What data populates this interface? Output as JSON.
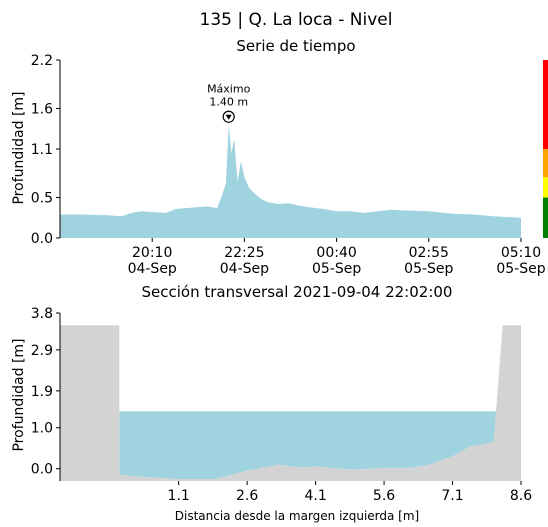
{
  "page": {
    "title": "135 | Q. La loca - Nivel"
  },
  "chart_data": [
    {
      "type": "area",
      "title": "Serie de tiempo",
      "xlabel": "",
      "ylabel": "Profundidad [m]",
      "ylim": [
        0,
        2.2
      ],
      "yticks": [
        "0.0",
        "0.5",
        "1.1",
        "1.6",
        "2.2"
      ],
      "ytick_values": [
        0,
        0.5,
        1.1,
        1.6,
        2.2
      ],
      "xlim": [
        "2021-09-04T17:55",
        "2021-09-05T05:10"
      ],
      "xticks": [
        {
          "value": "2021-09-04T20:10",
          "line1": "20:10",
          "line2": "04-Sep"
        },
        {
          "value": "2021-09-04T22:25",
          "line1": "22:25",
          "line2": "04-Sep"
        },
        {
          "value": "2021-09-05T00:40",
          "line1": "00:40",
          "line2": "05-Sep"
        },
        {
          "value": "2021-09-05T02:55",
          "line1": "02:55",
          "line2": "05-Sep"
        },
        {
          "value": "2021-09-05T05:10",
          "line1": "05:10",
          "line2": "05-Sep"
        }
      ],
      "series": [
        {
          "color": "#9fd3e0",
          "points": [
            [
              "2021-09-04T17:55",
              0.29
            ],
            [
              "2021-09-04T18:30",
              0.29
            ],
            [
              "2021-09-04T19:05",
              0.28
            ],
            [
              "2021-09-04T19:25",
              0.27
            ],
            [
              "2021-09-04T19:40",
              0.31
            ],
            [
              "2021-09-04T19:55",
              0.33
            ],
            [
              "2021-09-04T20:10",
              0.32
            ],
            [
              "2021-09-04T20:30",
              0.31
            ],
            [
              "2021-09-04T20:45",
              0.36
            ],
            [
              "2021-09-04T21:00",
              0.37
            ],
            [
              "2021-09-04T21:15",
              0.38
            ],
            [
              "2021-09-04T21:30",
              0.39
            ],
            [
              "2021-09-04T21:45",
              0.37
            ],
            [
              "2021-09-04T21:52",
              0.52
            ],
            [
              "2021-09-04T21:58",
              0.68
            ],
            [
              "2021-09-04T22:02",
              1.4
            ],
            [
              "2021-09-04T22:06",
              1.05
            ],
            [
              "2021-09-04T22:10",
              1.22
            ],
            [
              "2021-09-04T22:15",
              0.7
            ],
            [
              "2021-09-04T22:20",
              0.95
            ],
            [
              "2021-09-04T22:25",
              0.75
            ],
            [
              "2021-09-04T22:32",
              0.62
            ],
            [
              "2021-09-04T22:40",
              0.55
            ],
            [
              "2021-09-04T22:50",
              0.48
            ],
            [
              "2021-09-04T23:00",
              0.44
            ],
            [
              "2021-09-04T23:15",
              0.42
            ],
            [
              "2021-09-04T23:30",
              0.43
            ],
            [
              "2021-09-04T23:45",
              0.4
            ],
            [
              "2021-09-05T00:00",
              0.38
            ],
            [
              "2021-09-05T00:20",
              0.36
            ],
            [
              "2021-09-05T00:40",
              0.33
            ],
            [
              "2021-09-05T01:00",
              0.33
            ],
            [
              "2021-09-05T01:20",
              0.31
            ],
            [
              "2021-09-05T01:40",
              0.33
            ],
            [
              "2021-09-05T02:00",
              0.35
            ],
            [
              "2021-09-05T02:20",
              0.34
            ],
            [
              "2021-09-05T02:55",
              0.33
            ],
            [
              "2021-09-05T03:30",
              0.3
            ],
            [
              "2021-09-05T04:00",
              0.29
            ],
            [
              "2021-09-05T04:30",
              0.27
            ],
            [
              "2021-09-05T05:10",
              0.25
            ]
          ]
        }
      ],
      "annotation": {
        "x": "2021-09-04T22:02",
        "y": 1.4,
        "line1": "Máximo",
        "line2": "1.40 m",
        "marker": "down-triangle-circle-icon"
      },
      "alert_levels": [
        {
          "color": "#008000",
          "from": 0.0,
          "to": 0.5
        },
        {
          "color": "#ffff00",
          "from": 0.5,
          "to": 0.75
        },
        {
          "color": "#ffa500",
          "from": 0.75,
          "to": 1.1
        },
        {
          "color": "#ff0000",
          "from": 1.1,
          "to": 2.2
        }
      ],
      "grid": false
    },
    {
      "type": "area",
      "title": "Sección transversal 2021-09-04 22:02:00",
      "xlabel": "Distancia desde la margen izquierda [m]",
      "ylabel": "Profundidad [m]",
      "xlim": [
        -1.5,
        8.6
      ],
      "ylim": [
        -0.3,
        3.8
      ],
      "xticks": [
        "1.1",
        "2.6",
        "4.1",
        "5.6",
        "7.1",
        "8.6"
      ],
      "xtick_values": [
        1.1,
        2.6,
        4.1,
        5.6,
        7.1,
        8.6
      ],
      "yticks": [
        "0.0",
        "1.0",
        "1.9",
        "2.9",
        "3.8"
      ],
      "ytick_values": [
        0,
        1.0,
        1.9,
        2.9,
        3.8
      ],
      "water_level": 1.4,
      "water_color": "#9fd3e0",
      "ground_color": "#d3d3d3",
      "bed_profile": [
        [
          -0.2,
          3.5
        ],
        [
          -0.2,
          -0.15
        ],
        [
          0.3,
          -0.2
        ],
        [
          1.1,
          -0.25
        ],
        [
          1.9,
          -0.25
        ],
        [
          2.6,
          -0.05
        ],
        [
          3.3,
          0.1
        ],
        [
          3.8,
          0.02
        ],
        [
          4.1,
          0.06
        ],
        [
          4.6,
          0.0
        ],
        [
          5.0,
          -0.02
        ],
        [
          5.6,
          0.02
        ],
        [
          6.2,
          0.02
        ],
        [
          6.6,
          0.1
        ],
        [
          7.1,
          0.3
        ],
        [
          7.5,
          0.55
        ],
        [
          8.0,
          0.65
        ],
        [
          8.2,
          3.5
        ]
      ],
      "grid": false
    }
  ]
}
